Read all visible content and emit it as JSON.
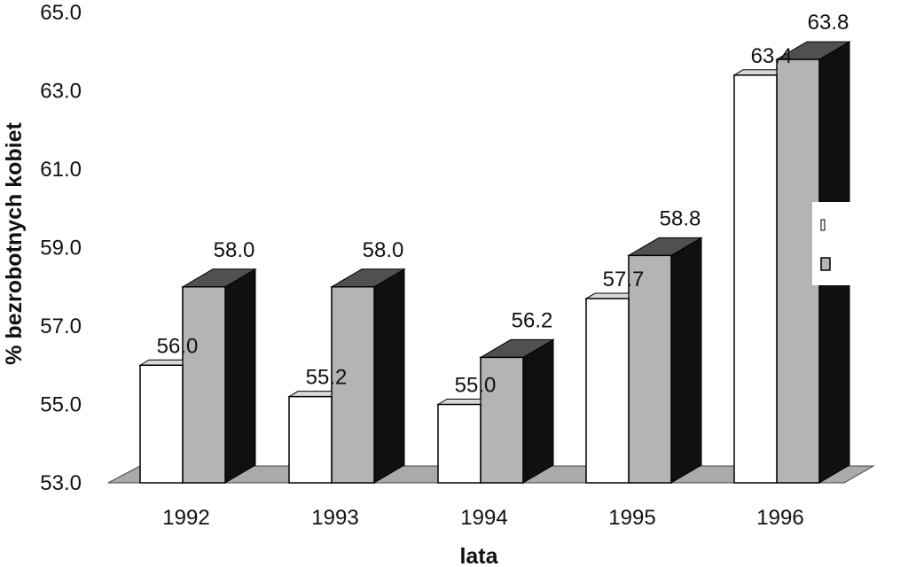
{
  "chart_data": {
    "type": "bar",
    "categories": [
      "1992",
      "1993",
      "1994",
      "1995",
      "1996"
    ],
    "series": [
      {
        "values": [
          56.0,
          55.2,
          55.0,
          57.7,
          63.4
        ]
      },
      {
        "values": [
          58.0,
          58.0,
          56.2,
          58.8,
          63.8
        ]
      }
    ],
    "xlabel": "lata",
    "ylabel": "% bezrobotnych kobiet",
    "ylim": [
      53.0,
      65.0
    ],
    "yticks": [
      "53.0",
      "55.0",
      "57.0",
      "59.0",
      "61.0",
      "63.0",
      "65.0"
    ],
    "grid": false,
    "legend": "right",
    "colors": {
      "series_0_face": "#ffffff",
      "series_1_front": "#b4b4b4",
      "series_1_side": "#101010",
      "series_1_top": "#505050",
      "floor": "#aaaaaa"
    }
  }
}
